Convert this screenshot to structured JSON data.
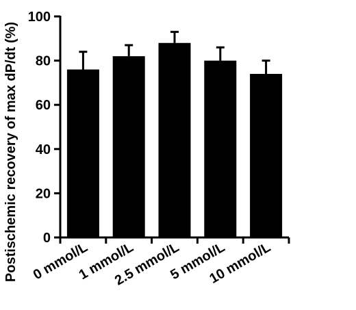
{
  "chart_data": {
    "type": "bar",
    "title": "",
    "xlabel": "",
    "ylabel": "Postischemic recovery of max dP/dt (%)",
    "categories": [
      "0 mmol/L",
      "1 mmol/L",
      "2.5 mmol/L",
      "5 mmol/L",
      "10 mmol/L"
    ],
    "values": [
      76,
      82,
      88,
      80,
      74
    ],
    "error_upper": [
      8,
      5,
      5,
      6,
      6
    ],
    "ylim": [
      0,
      100
    ],
    "yticks": [
      0,
      20,
      40,
      60,
      80,
      100
    ],
    "ytick_labels": [
      "0",
      "20",
      "40",
      "60",
      "80",
      "100"
    ],
    "grid": false,
    "legend": "none",
    "bar_color": "#000000"
  }
}
